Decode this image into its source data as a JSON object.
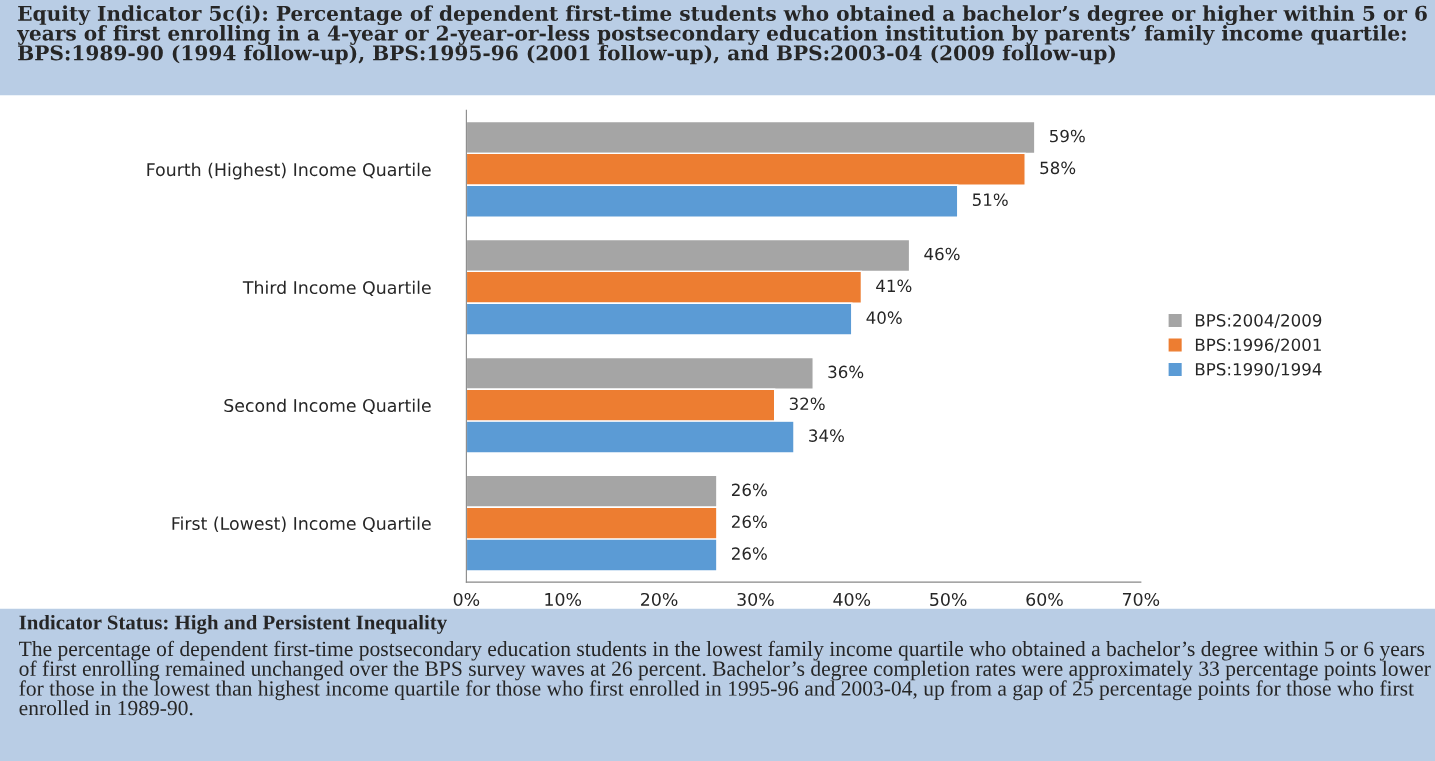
{
  "chart_data": {
    "type": "bar",
    "orientation": "horizontal",
    "title": "Equity Indicator 5c(i): Percentage of dependent first-time students who obtained a bachelor’s degree or higher within 5 or 6 years of first enrolling in a 4-year or 2-year-or-less postsecondary education institution by parents’ family income quartile: BPS:1989-90 (1994 follow-up), BPS:1995-96 (2001 follow-up), and BPS:2003-04 (2009 follow-up)",
    "categories": [
      "Fourth (Highest) Income Quartile",
      "Third Income Quartile",
      "Second Income Quartile",
      "First (Lowest) Income Quartile"
    ],
    "series": [
      {
        "name": "BPS:2004/2009",
        "color": "#a5a5a5",
        "values": [
          59,
          46,
          36,
          26
        ],
        "value_labels": [
          "59%",
          "46%",
          "36%",
          "26%"
        ]
      },
      {
        "name": "BPS:1996/2001",
        "color": "#ed7d31",
        "values": [
          58,
          41,
          32,
          26
        ],
        "value_labels": [
          "58%",
          "41%",
          "32%",
          "26%"
        ]
      },
      {
        "name": "BPS:1990/1994",
        "color": "#5b9bd5",
        "values": [
          51,
          40,
          34,
          26
        ],
        "value_labels": [
          "51%",
          "40%",
          "34%",
          "26%"
        ]
      }
    ],
    "xlim": [
      0,
      70
    ],
    "xticks": [
      {
        "value": 0,
        "label": "0%"
      },
      {
        "value": 10,
        "label": "10%"
      },
      {
        "value": 20,
        "label": "20%"
      },
      {
        "value": 30,
        "label": "30%"
      },
      {
        "value": 40,
        "label": "40%"
      },
      {
        "value": 50,
        "label": "50%"
      },
      {
        "value": 60,
        "label": "60%"
      },
      {
        "value": 70,
        "label": "70%"
      }
    ],
    "grid": false,
    "legend": "right",
    "annotations": [
      "Indicator Status: High and Persistent Inequality",
      "The percentage of dependent first-time postsecondary education students in the lowest family income quartile who obtained a bachelor’s degree within 5 or 6 years of first enrolling remained unchanged over the BPS survey waves at 26 percent. Bachelor’s degree completion rates were approximately 33 percentage points lower for those in the lowest than highest income quartile for those who first enrolled in 1995-96 and 2003-04, up from a gap of 25 percentage points for those who first enrolled in 1989-90."
    ]
  }
}
